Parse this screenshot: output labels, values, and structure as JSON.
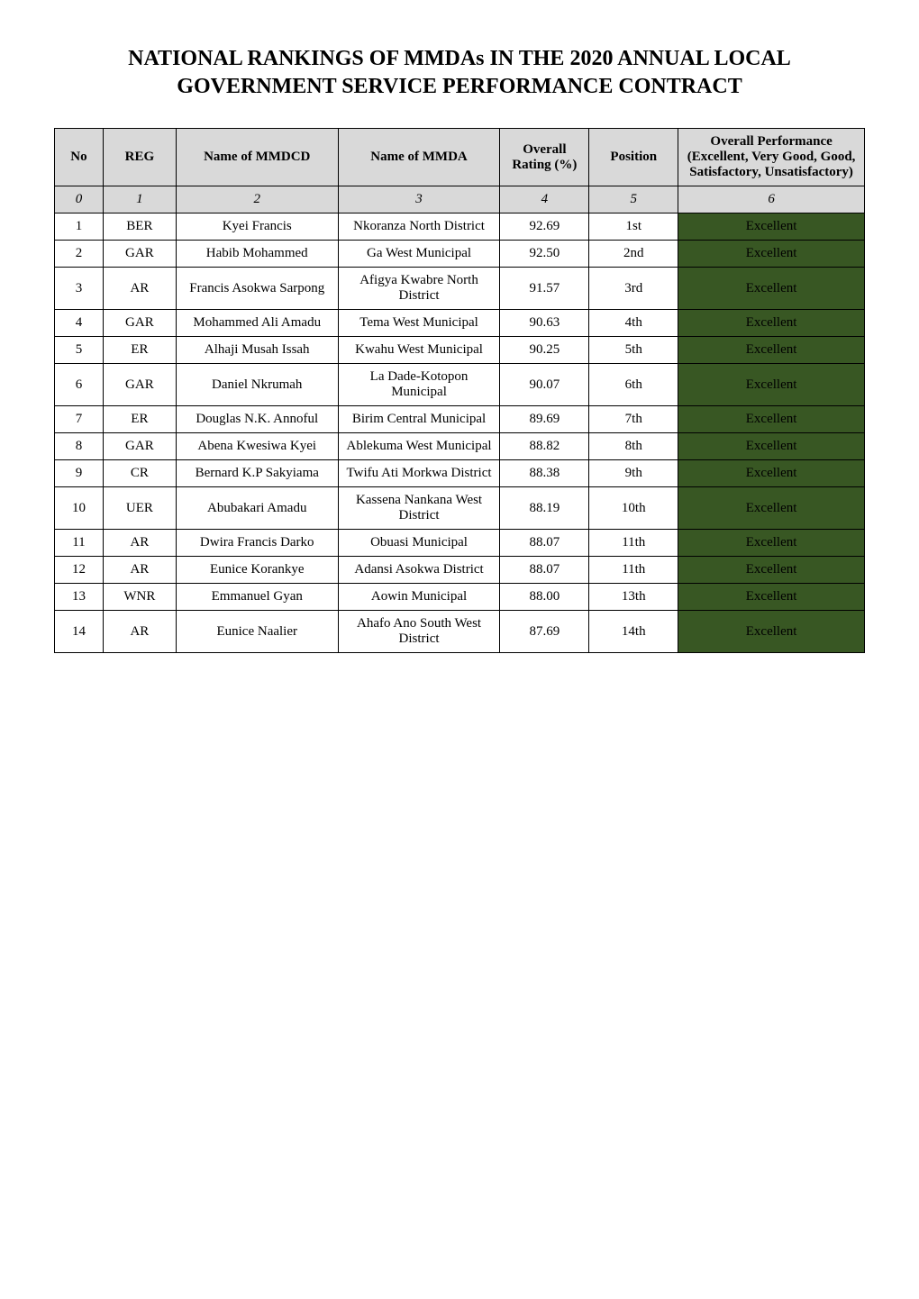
{
  "title": "NATIONAL RANKINGS OF MMDAs IN THE 2020 ANNUAL LOCAL GOVERNMENT SERVICE PERFORMANCE CONTRACT",
  "table": {
    "columns": [
      {
        "key": "no",
        "label": "No",
        "width_pct": 6
      },
      {
        "key": "reg",
        "label": "REG",
        "width_pct": 9
      },
      {
        "key": "mmdcd",
        "label": "Name of MMDCD",
        "width_pct": 20
      },
      {
        "key": "mmda",
        "label": "Name of MMDA",
        "width_pct": 20
      },
      {
        "key": "rating",
        "label": "Overall Rating (%)",
        "width_pct": 11
      },
      {
        "key": "pos",
        "label": "Position",
        "width_pct": 11
      },
      {
        "key": "perf",
        "label": "Overall Performance (Excellent, Very Good, Good, Satisfactory, Unsatisfactory)",
        "width_pct": 23
      }
    ],
    "index_row": [
      "0",
      "1",
      "2",
      "3",
      "4",
      "5",
      "6"
    ],
    "rows": [
      {
        "no": "1",
        "reg": "BER",
        "mmdcd": "Kyei Francis",
        "mmda": "Nkoranza North District",
        "rating": "92.69",
        "pos": "1st",
        "perf": "Excellent"
      },
      {
        "no": "2",
        "reg": "GAR",
        "mmdcd": "Habib Mohammed",
        "mmda": "Ga West Municipal",
        "rating": "92.50",
        "pos": "2nd",
        "perf": "Excellent"
      },
      {
        "no": "3",
        "reg": "AR",
        "mmdcd": "Francis Asokwa Sarpong",
        "mmda": "Afigya Kwabre North District",
        "rating": "91.57",
        "pos": "3rd",
        "perf": "Excellent"
      },
      {
        "no": "4",
        "reg": "GAR",
        "mmdcd": "Mohammed Ali Amadu",
        "mmda": "Tema West Municipal",
        "rating": "90.63",
        "pos": "4th",
        "perf": "Excellent"
      },
      {
        "no": "5",
        "reg": "ER",
        "mmdcd": "Alhaji Musah Issah",
        "mmda": "Kwahu West Municipal",
        "rating": "90.25",
        "pos": "5th",
        "perf": "Excellent"
      },
      {
        "no": "6",
        "reg": "GAR",
        "mmdcd": "Daniel Nkrumah",
        "mmda": "La Dade-Kotopon Municipal",
        "rating": "90.07",
        "pos": "6th",
        "perf": "Excellent"
      },
      {
        "no": "7",
        "reg": "ER",
        "mmdcd": "Douglas N.K. Annoful",
        "mmda": "Birim Central Municipal",
        "rating": "89.69",
        "pos": "7th",
        "perf": "Excellent"
      },
      {
        "no": "8",
        "reg": "GAR",
        "mmdcd": "Abena Kwesiwa Kyei",
        "mmda": "Ablekuma West Municipal",
        "rating": "88.82",
        "pos": "8th",
        "perf": "Excellent"
      },
      {
        "no": "9",
        "reg": "CR",
        "mmdcd": "Bernard K.P Sakyiama",
        "mmda": "Twifu Ati Morkwa District",
        "rating": "88.38",
        "pos": "9th",
        "perf": "Excellent"
      },
      {
        "no": "10",
        "reg": "UER",
        "mmdcd": "Abubakari Amadu",
        "mmda": "Kassena Nankana West District",
        "rating": "88.19",
        "pos": "10th",
        "perf": "Excellent"
      },
      {
        "no": "11",
        "reg": "AR",
        "mmdcd": "Dwira Francis Darko",
        "mmda": "Obuasi Municipal",
        "rating": "88.07",
        "pos": "11th",
        "perf": "Excellent"
      },
      {
        "no": "12",
        "reg": "AR",
        "mmdcd": "Eunice Korankye",
        "mmda": "Adansi Asokwa District",
        "rating": "88.07",
        "pos": "11th",
        "perf": "Excellent"
      },
      {
        "no": "13",
        "reg": "WNR",
        "mmdcd": "Emmanuel Gyan",
        "mmda": "Aowin Municipal",
        "rating": "88.00",
        "pos": "13th",
        "perf": "Excellent"
      },
      {
        "no": "14",
        "reg": "AR",
        "mmdcd": "Eunice Naalier",
        "mmda": "Ahafo Ano South West District",
        "rating": "87.69",
        "pos": "14th",
        "perf": "Excellent"
      }
    ],
    "styling": {
      "header_bg": "#d9d9d9",
      "index_row_bg": "#d9d9d9",
      "border_color": "#000000",
      "font_family": "Palatino Linotype",
      "title_fontsize_pt": 18,
      "cell_fontsize_pt": 11,
      "perf_colors": {
        "Excellent": "#385723"
      }
    }
  }
}
